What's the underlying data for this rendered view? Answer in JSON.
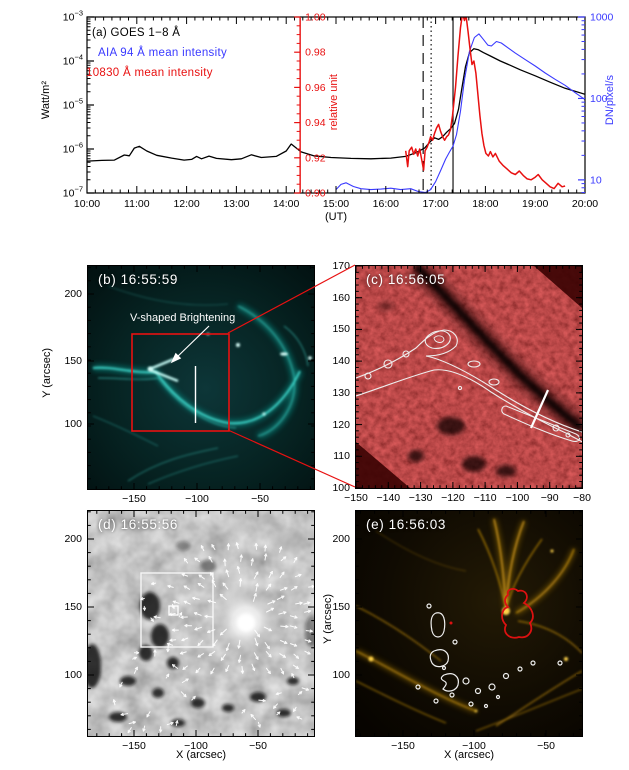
{
  "panels": {
    "a": {
      "label": "(a) GOES 1−8 Å",
      "legend_aia": "AIA 94 Å mean intensity",
      "legend_10830": "10830 Å mean intensity",
      "ylabel_left": "Watt/m²",
      "ylabel_mid": "relative unit",
      "ylabel_right": "DN/pixel/s",
      "xlabel": "(UT)"
    },
    "b": {
      "title": "(b) 16:55:59",
      "annotation": "V-shaped Brightening",
      "ylabel": "Y (arcsec)",
      "yticks": [
        "200",
        "150",
        "100"
      ],
      "xticks": [
        "−150",
        "−100",
        "−50"
      ]
    },
    "c": {
      "title": "(c) 16:56:05",
      "yticks": [
        "170",
        "160",
        "150",
        "140",
        "130",
        "120",
        "110",
        "100"
      ],
      "xticks": [
        "−150",
        "−140",
        "−130",
        "−120",
        "−110",
        "−100",
        "−90",
        "−80"
      ]
    },
    "d": {
      "title": "(d) 16:55:56",
      "ylabel": "Y (arcsec)",
      "xlabel": "X (arcsec)",
      "yticks": [
        "200",
        "150",
        "100"
      ],
      "xticks": [
        "−150",
        "−100",
        "−50"
      ]
    },
    "e": {
      "title": "(e) 16:56:03",
      "xlabel": "X (arcsec)",
      "yticks": [
        "200",
        "150",
        "100"
      ],
      "xticks": [
        "−150",
        "−100",
        "−50"
      ]
    }
  },
  "colors": {
    "goes_curve": "#000000",
    "aia_curve": "#3a3aff",
    "intensity_curve": "#e81010",
    "red_box": "#e81111",
    "white_overlay": "#f5f5f5",
    "contour_white": "#eeeeee",
    "contour_red": "#dd1111"
  },
  "chart_data": {
    "type": "line",
    "title": "",
    "axes": {
      "x": {
        "title": "(UT)",
        "min_hour": 10,
        "max_hour": 20,
        "ticks": [
          "10:00",
          "11:00",
          "12:00",
          "13:00",
          "14:00",
          "15:00",
          "16:00",
          "17:00",
          "18:00",
          "19:00",
          "20:00"
        ]
      },
      "left": {
        "title": "Watt/m²",
        "scale": "log",
        "min": 1e-07,
        "max": 0.001,
        "tick_exponents": [
          -3,
          -4,
          -5,
          -6,
          -7
        ],
        "color": "#000000"
      },
      "right": {
        "title": "DN/pixel/s",
        "scale": "log",
        "min": 6.9,
        "max": 1000,
        "ticks": [
          1000,
          100,
          10
        ],
        "color": "#3a3aff"
      },
      "red": {
        "title": "relative unit",
        "scale": "linear",
        "min": 0.9,
        "max": 1.0,
        "position_hour": 14.28,
        "ticks": [
          1.0,
          0.98,
          0.96,
          0.94,
          0.92,
          0.9
        ],
        "minor_step": 0.005,
        "color": "#e81010"
      }
    },
    "vlines": [
      {
        "hour": 16.75,
        "style": "long-dash"
      },
      {
        "hour": 16.91,
        "style": "dotted"
      },
      {
        "hour": 17.35,
        "style": "solid"
      }
    ],
    "series": [
      {
        "name": "GOES 1−8 Å",
        "axis": "left",
        "color": "#000000",
        "width": 1.3,
        "points": [
          [
            10.0,
            5.3e-07
          ],
          [
            10.3,
            5.5e-07
          ],
          [
            10.55,
            5.6e-07
          ],
          [
            10.75,
            7.3e-07
          ],
          [
            10.85,
            7e-07
          ],
          [
            10.95,
            1.05e-06
          ],
          [
            11.05,
            1.15e-06
          ],
          [
            11.2,
            9e-07
          ],
          [
            11.4,
            7.2e-07
          ],
          [
            11.7,
            6.2e-07
          ],
          [
            11.95,
            5.6e-07
          ],
          [
            12.1,
            5.8e-07
          ],
          [
            12.2,
            6.8e-07
          ],
          [
            12.3,
            6e-07
          ],
          [
            12.45,
            6.9e-07
          ],
          [
            12.6,
            6.1e-07
          ],
          [
            12.9,
            5.7e-07
          ],
          [
            13.1,
            6e-07
          ],
          [
            13.3,
            7.4e-07
          ],
          [
            13.5,
            6.4e-07
          ],
          [
            13.8,
            6.8e-07
          ],
          [
            14.0,
            9e-07
          ],
          [
            14.1,
            1.3e-06
          ],
          [
            14.3,
            8.6e-07
          ],
          [
            14.55,
            7e-07
          ],
          [
            14.9,
            6.4e-07
          ],
          [
            15.3,
            6.1e-07
          ],
          [
            15.7,
            6e-07
          ],
          [
            16.1,
            6.2e-07
          ],
          [
            16.4,
            6.8e-07
          ],
          [
            16.6,
            8.2e-07
          ],
          [
            16.78,
            1.05e-06
          ],
          [
            16.9,
            1.5e-06
          ],
          [
            16.98,
            1.8e-06
          ],
          [
            17.06,
            1.65e-06
          ],
          [
            17.14,
            1.9e-06
          ],
          [
            17.22,
            2.4e-06
          ],
          [
            17.3,
            2.9e-06
          ],
          [
            17.38,
            3.8e-06
          ],
          [
            17.46,
            8e-06
          ],
          [
            17.53,
            2.5e-05
          ],
          [
            17.6,
            7.5e-05
          ],
          [
            17.68,
            0.000155
          ],
          [
            17.77,
            0.00019
          ],
          [
            17.86,
            0.00018
          ],
          [
            17.96,
            0.000155
          ],
          [
            18.1,
            0.00013
          ],
          [
            18.3,
            0.0001
          ],
          [
            18.5,
            8e-05
          ],
          [
            18.7,
            6.3e-05
          ],
          [
            19.0,
            4.6e-05
          ],
          [
            19.3,
            3.3e-05
          ],
          [
            19.6,
            2.4e-05
          ],
          [
            20.0,
            1.75e-05
          ]
        ]
      },
      {
        "name": "AIA 94 Å mean intensity",
        "axis": "right",
        "color": "#3a3aff",
        "width": 1.1,
        "points": [
          [
            15.0,
            7.6
          ],
          [
            15.1,
            8.8
          ],
          [
            15.2,
            9.2
          ],
          [
            15.35,
            8.3
          ],
          [
            15.5,
            7.8
          ],
          [
            15.7,
            7.6
          ],
          [
            15.9,
            7.7
          ],
          [
            16.1,
            7.9
          ],
          [
            16.3,
            7.6
          ],
          [
            16.5,
            7.8
          ],
          [
            16.65,
            7.2
          ],
          [
            16.8,
            7.0
          ],
          [
            16.9,
            7.6
          ],
          [
            17.0,
            9.5
          ],
          [
            17.1,
            13
          ],
          [
            17.2,
            18
          ],
          [
            17.28,
            22
          ],
          [
            17.35,
            26
          ],
          [
            17.42,
            36
          ],
          [
            17.5,
            70
          ],
          [
            17.58,
            170
          ],
          [
            17.68,
            380
          ],
          [
            17.78,
            560
          ],
          [
            17.87,
            620
          ],
          [
            17.95,
            540
          ],
          [
            18.05,
            450
          ],
          [
            18.12,
            440
          ],
          [
            18.22,
            500
          ],
          [
            18.32,
            480
          ],
          [
            18.45,
            420
          ],
          [
            18.6,
            360
          ],
          [
            18.8,
            300
          ],
          [
            19.0,
            250
          ],
          [
            19.2,
            205
          ],
          [
            19.4,
            172
          ],
          [
            19.6,
            145
          ],
          [
            19.8,
            118
          ],
          [
            20.0,
            97
          ]
        ]
      },
      {
        "name": "10830 Å mean intensity",
        "axis": "red",
        "color": "#e81010",
        "width": 1.5,
        "points": [
          [
            16.4,
            0.924
          ],
          [
            16.44,
            0.915
          ],
          [
            16.47,
            0.924
          ],
          [
            16.52,
            0.926
          ],
          [
            16.56,
            0.922
          ],
          [
            16.6,
            0.925
          ],
          [
            16.64,
            0.921
          ],
          [
            16.68,
            0.925
          ],
          [
            16.72,
            0.919
          ],
          [
            16.76,
            0.913
          ],
          [
            16.79,
            0.924
          ],
          [
            16.83,
            0.926
          ],
          [
            16.87,
            0.929
          ],
          [
            16.9,
            0.932
          ],
          [
            16.94,
            0.93
          ],
          [
            16.98,
            0.934
          ],
          [
            17.02,
            0.937
          ],
          [
            17.06,
            0.939
          ],
          [
            17.1,
            0.935
          ],
          [
            17.14,
            0.932
          ],
          [
            17.18,
            0.93
          ],
          [
            17.22,
            0.932
          ],
          [
            17.26,
            0.933
          ],
          [
            17.3,
            0.936
          ],
          [
            17.34,
            0.944
          ],
          [
            17.4,
            0.96
          ],
          [
            17.45,
            0.978
          ],
          [
            17.5,
            0.994
          ],
          [
            17.54,
            1.002
          ],
          [
            17.58,
            0.998
          ],
          [
            17.61,
            1.001
          ],
          [
            17.65,
            0.992
          ],
          [
            17.69,
            0.982
          ],
          [
            17.73,
            0.973
          ],
          [
            17.77,
            0.975
          ],
          [
            17.81,
            0.968
          ],
          [
            17.85,
            0.956
          ],
          [
            17.89,
            0.944
          ],
          [
            17.93,
            0.934
          ],
          [
            17.97,
            0.927
          ],
          [
            18.01,
            0.9225
          ],
          [
            18.06,
            0.921
          ],
          [
            18.1,
            0.9235
          ],
          [
            18.15,
            0.9205
          ],
          [
            18.2,
            0.9225
          ],
          [
            18.28,
            0.918
          ],
          [
            18.36,
            0.9155
          ],
          [
            18.44,
            0.9135
          ],
          [
            18.52,
            0.9115
          ],
          [
            18.6,
            0.9105
          ],
          [
            18.68,
            0.9125
          ],
          [
            18.76,
            0.91
          ],
          [
            18.84,
            0.908
          ],
          [
            18.92,
            0.9075
          ],
          [
            19.0,
            0.909
          ],
          [
            19.06,
            0.9105
          ],
          [
            19.14,
            0.9075
          ],
          [
            19.22,
            0.9055
          ],
          [
            19.3,
            0.9035
          ],
          [
            19.38,
            0.9025
          ],
          [
            19.46,
            0.9055
          ],
          [
            19.54,
            0.9035
          ],
          [
            19.6,
            0.904
          ]
        ]
      }
    ]
  }
}
